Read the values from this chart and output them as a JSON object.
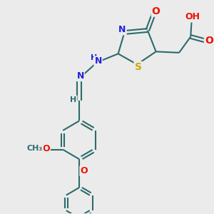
{
  "background_color": "#ebebeb",
  "bond_color": "#2d6b6b",
  "bond_width": 1.5,
  "atom_colors": {
    "O": "#ee1100",
    "N": "#2222dd",
    "S": "#ccaa00",
    "C": "#2d6b6b",
    "H": "#2d6b6b"
  },
  "font_size": 9
}
